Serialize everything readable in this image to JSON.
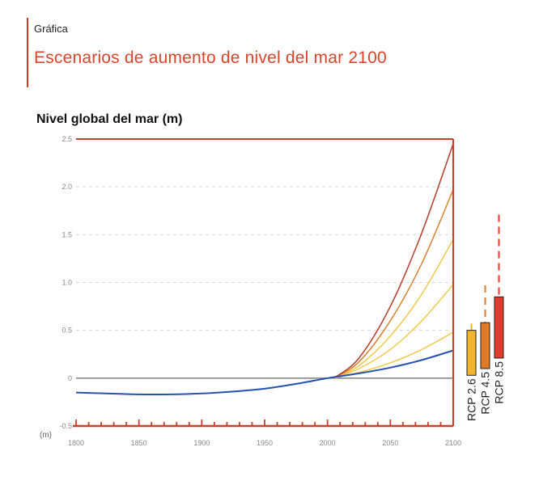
{
  "header": {
    "kicker": "Gráfica",
    "title": "Escenarios de aumento de nivel del mar 2100"
  },
  "chart_data": {
    "type": "line",
    "title": "Nivel global del mar (m)",
    "unit_label": "(m)",
    "xlim": [
      1800,
      2100
    ],
    "ylim": [
      -0.5,
      2.5
    ],
    "x_ticks": [
      1800,
      1850,
      1900,
      1950,
      2000,
      2050,
      2100
    ],
    "y_ticks": [
      -0.5,
      0,
      0.5,
      1.0,
      1.5,
      2.0,
      2.5
    ],
    "y_tick_labels": [
      "-0.5",
      "0",
      "0.5",
      "1.0",
      "1.5",
      "2.0",
      "2.5"
    ],
    "grid": "horizontal-dashed",
    "historical": {
      "color": "#2452b3",
      "x": [
        1800,
        1825,
        1850,
        1875,
        1900,
        1925,
        1950,
        1975,
        2000,
        2025,
        2050,
        2075,
        2100
      ],
      "y": [
        -0.15,
        -0.16,
        -0.17,
        -0.17,
        -0.16,
        -0.14,
        -0.11,
        -0.06,
        0.0,
        0.05,
        0.11,
        0.19,
        0.29
      ]
    },
    "scenarios": [
      {
        "color": "#f2c94c",
        "x": [
          2005,
          2025,
          2050,
          2075,
          2100
        ],
        "y": [
          0.0,
          0.06,
          0.16,
          0.3,
          0.48
        ]
      },
      {
        "color": "#f2c94c",
        "x": [
          2005,
          2025,
          2050,
          2075,
          2100
        ],
        "y": [
          0.0,
          0.1,
          0.3,
          0.6,
          0.98
        ]
      },
      {
        "color": "#f2c94c",
        "x": [
          2005,
          2025,
          2050,
          2075,
          2100
        ],
        "y": [
          0.0,
          0.13,
          0.44,
          0.88,
          1.45
        ]
      },
      {
        "color": "#d9802e",
        "x": [
          2005,
          2025,
          2050,
          2075,
          2100
        ],
        "y": [
          0.0,
          0.17,
          0.6,
          1.2,
          1.97
        ]
      },
      {
        "color": "#b83a2a",
        "x": [
          2005,
          2025,
          2050,
          2075,
          2100
        ],
        "y": [
          0.0,
          0.21,
          0.75,
          1.52,
          2.45
        ]
      }
    ],
    "rcp_ranges": [
      {
        "name": "RCP 2.6",
        "color": "#f3b52c",
        "low": 0.03,
        "high": 0.5,
        "dash_top": 0.57
      },
      {
        "name": "RCP 4.5",
        "color": "#e07b2a",
        "low": 0.1,
        "high": 0.58,
        "dash_top": 0.97
      },
      {
        "name": "RCP 8.5",
        "color": "#e33b2e",
        "low": 0.21,
        "high": 0.85,
        "dash_top": 1.71
      }
    ]
  }
}
